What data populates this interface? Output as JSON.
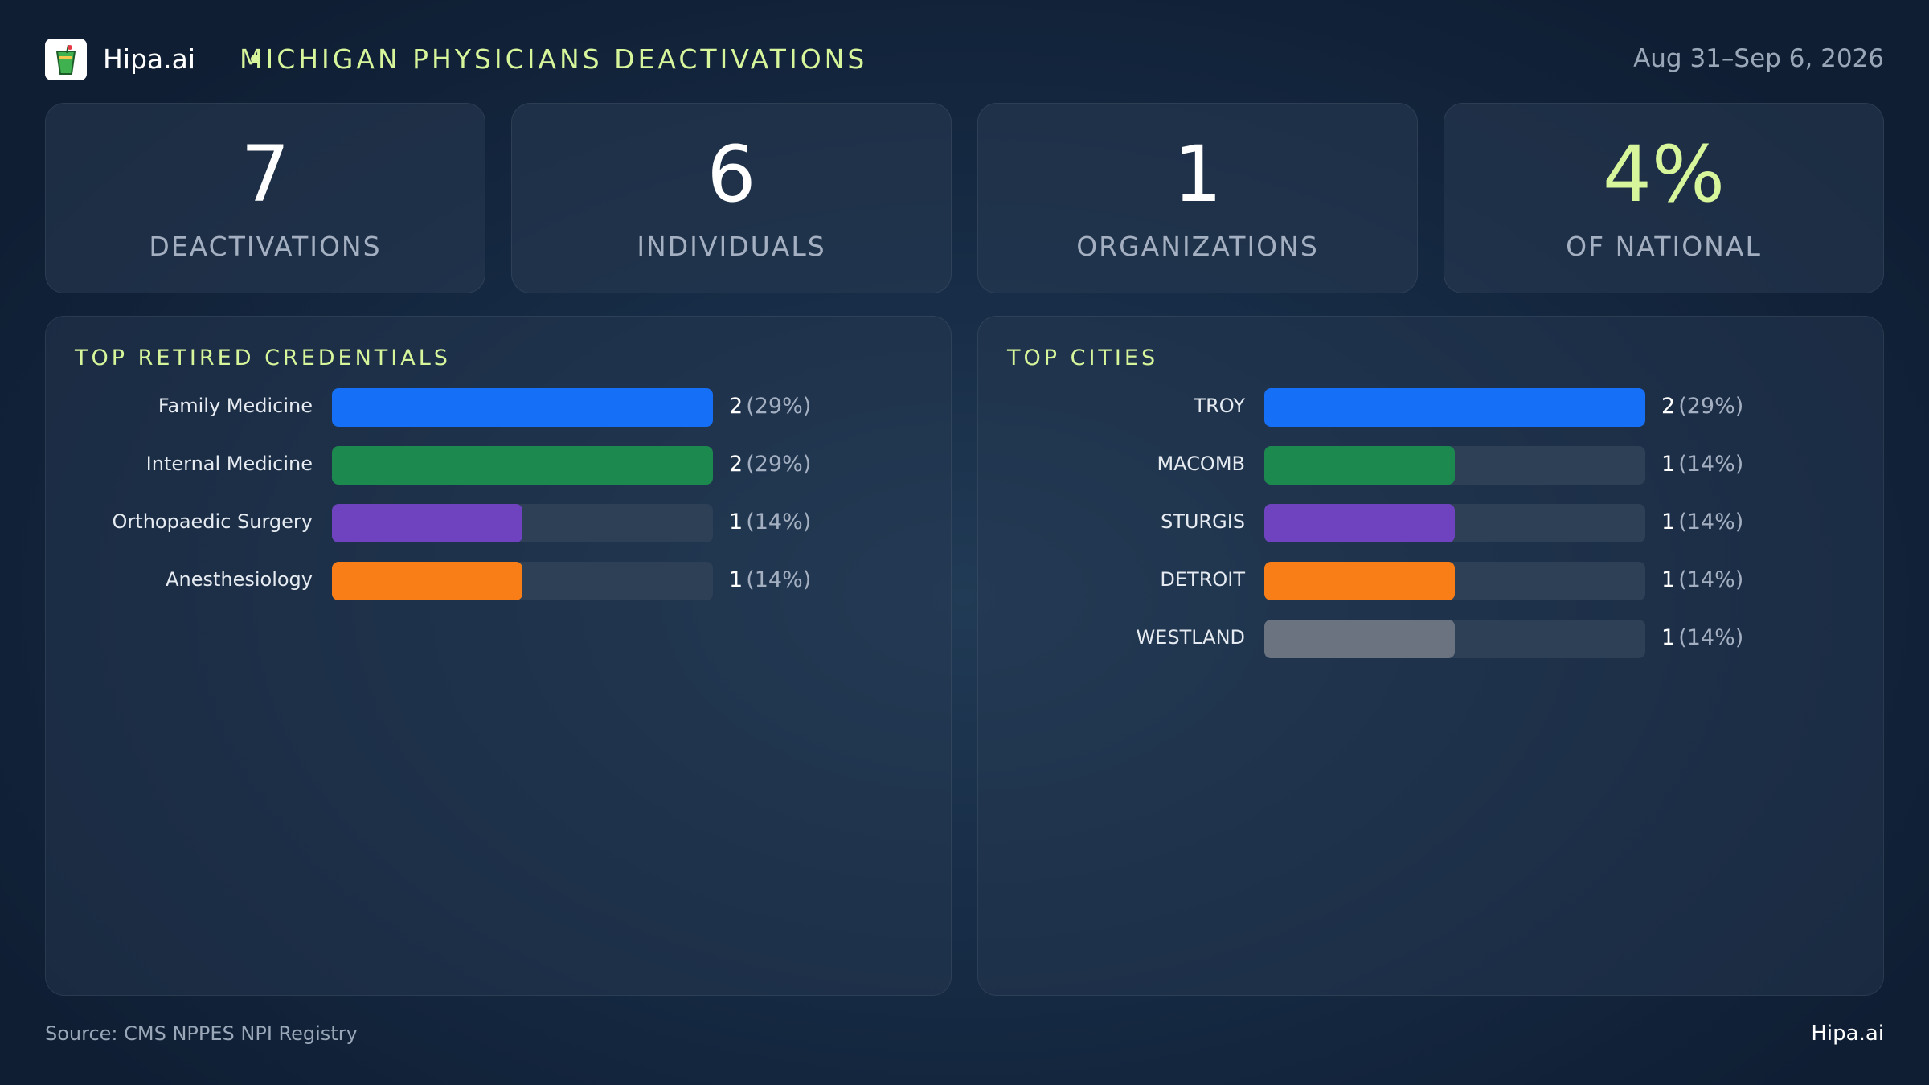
{
  "header": {
    "brand": "Hipa.ai",
    "title": "MICHIGAN PHYSICIANS DEACTIVATIONS",
    "date_range": "Aug 31–Sep 6, 2026",
    "logo_icon": "cocktail-glass-icon"
  },
  "stats": [
    {
      "value": "7",
      "label": "DEACTIVATIONS"
    },
    {
      "value": "6",
      "label": "INDIVIDUALS"
    },
    {
      "value": "1",
      "label": "ORGANIZATIONS"
    },
    {
      "value": "4%",
      "label": "OF NATIONAL"
    }
  ],
  "colors": {
    "accent": "#d7f59b",
    "blue": "#1670f7",
    "green": "#1c8a4f",
    "purple": "#6f43c0",
    "orange": "#f97e17",
    "gray": "#6b7380"
  },
  "chart_data": [
    {
      "type": "bar",
      "title": "TOP RETIRED CREDENTIALS",
      "orientation": "horizontal",
      "max": 2,
      "categories": [
        "Family Medicine",
        "Internal Medicine",
        "Orthopaedic Surgery",
        "Anesthesiology"
      ],
      "values": [
        2,
        2,
        1,
        1
      ],
      "percents": [
        "(29%)",
        "(29%)",
        "(14%)",
        "(14%)"
      ],
      "colors": [
        "#1670f7",
        "#1c8a4f",
        "#6f43c0",
        "#f97e17"
      ]
    },
    {
      "type": "bar",
      "title": "TOP CITIES",
      "orientation": "horizontal",
      "max": 2,
      "categories": [
        "TROY",
        "MACOMB",
        "STURGIS",
        "DETROIT",
        "WESTLAND"
      ],
      "values": [
        2,
        1,
        1,
        1,
        1
      ],
      "percents": [
        "(29%)",
        "(14%)",
        "(14%)",
        "(14%)",
        "(14%)"
      ],
      "colors": [
        "#1670f7",
        "#1c8a4f",
        "#6f43c0",
        "#f97e17",
        "#6b7380"
      ]
    }
  ],
  "footer": {
    "source": "Source: CMS NPPES NPI Registry",
    "brand": "Hipa.ai"
  }
}
